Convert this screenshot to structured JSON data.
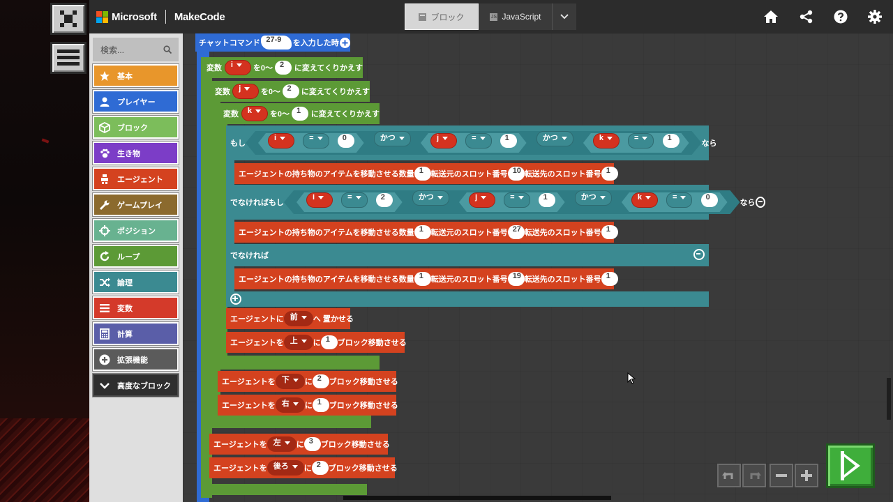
{
  "header": {
    "brand": "Microsoft",
    "product": "MakeCode",
    "tabs": [
      {
        "label": "ブロック",
        "active": true
      },
      {
        "label": "JavaScript",
        "active": false
      }
    ]
  },
  "toolbox": {
    "search_placeholder": "検索...",
    "categories": [
      {
        "label": "基本",
        "color": "#e8962b",
        "icon": "star-icon"
      },
      {
        "label": "プレイヤー",
        "color": "#2f6bd4",
        "icon": "person-icon"
      },
      {
        "label": "ブロック",
        "color": "#7cbd5b",
        "icon": "cube-icon"
      },
      {
        "label": "生き物",
        "color": "#7c3dc7",
        "icon": "paw-icon"
      },
      {
        "label": "エージェント",
        "color": "#d4421f",
        "icon": "agent-icon"
      },
      {
        "label": "ゲームプレイ",
        "color": "#8b6a2e",
        "icon": "wrench-icon"
      },
      {
        "label": "ポジション",
        "color": "#68b290",
        "icon": "crosshair-icon"
      },
      {
        "label": "ループ",
        "color": "#5c9a36",
        "icon": "loop-icon"
      },
      {
        "label": "論理",
        "color": "#3b8a91",
        "icon": "shuffle-icon"
      },
      {
        "label": "変数",
        "color": "#d43a2a",
        "icon": "list-icon"
      },
      {
        "label": "計算",
        "color": "#5a5ea8",
        "icon": "calculator-icon"
      },
      {
        "label": "拡張機能",
        "color": "#5b5b5b",
        "icon": "plus-circle-icon"
      },
      {
        "label": "高度なブロック",
        "color": "#2f2f2f",
        "icon": "chevron-down-icon"
      }
    ]
  },
  "blocks": {
    "chat": {
      "label": "チャットコマンド",
      "value": "27-9",
      "suffix": "を入力した時"
    },
    "loop_i": {
      "pre": "変数",
      "var": "i",
      "mid": "を0〜",
      "value": "2",
      "post": "に変えてくりかえす"
    },
    "loop_j": {
      "pre": "変数",
      "var": "j",
      "mid": "を0〜",
      "value": "2",
      "post": "に変えてくりかえす"
    },
    "loop_k": {
      "pre": "変数",
      "var": "k",
      "mid": "を0〜",
      "value": "1",
      "post": "に変えてくりかえす"
    },
    "if": {
      "if_label": "もし",
      "elseif_label": "でなければもし",
      "else_label": "でなければ",
      "then_label": "なら",
      "and_label": "かつ",
      "eq": "=",
      "cond1": [
        {
          "var": "i",
          "val": "0"
        },
        {
          "var": "j",
          "val": "1"
        },
        {
          "var": "k",
          "val": "1"
        }
      ],
      "cond2": [
        {
          "var": "i",
          "val": "2"
        },
        {
          "var": "j",
          "val": "1"
        },
        {
          "var": "k",
          "val": "0"
        }
      ]
    },
    "transfer": {
      "label": "エージェントの持ち物のアイテムを移動させる",
      "qty_label": "数量",
      "src_label": "転送元のスロット番号",
      "dst_label": "転送先のスロット番号",
      "rows": [
        {
          "qty": "1",
          "src": "10",
          "dst": "1"
        },
        {
          "qty": "1",
          "src": "27",
          "dst": "1"
        },
        {
          "qty": "1",
          "src": "19",
          "dst": "1"
        }
      ]
    },
    "place": {
      "pre": "エージェントに",
      "dir": "前",
      "post": "へ 置かせる"
    },
    "moves": [
      {
        "pre": "エージェントを",
        "dir": "上",
        "ni": "に",
        "val": "1",
        "post": "ブロック移動させる"
      },
      {
        "pre": "エージェントを",
        "dir": "下",
        "ni": "に",
        "val": "2",
        "post": "ブロック移動させる"
      },
      {
        "pre": "エージェントを",
        "dir": "右",
        "ni": "に",
        "val": "1",
        "post": "ブロック移動させる"
      },
      {
        "pre": "エージェントを",
        "dir": "左",
        "ni": "に",
        "val": "3",
        "post": "ブロック移動させる"
      },
      {
        "pre": "エージェントを",
        "dir": "後ろ",
        "ni": "に",
        "val": "2",
        "post": "ブロック移動させる"
      }
    ]
  }
}
